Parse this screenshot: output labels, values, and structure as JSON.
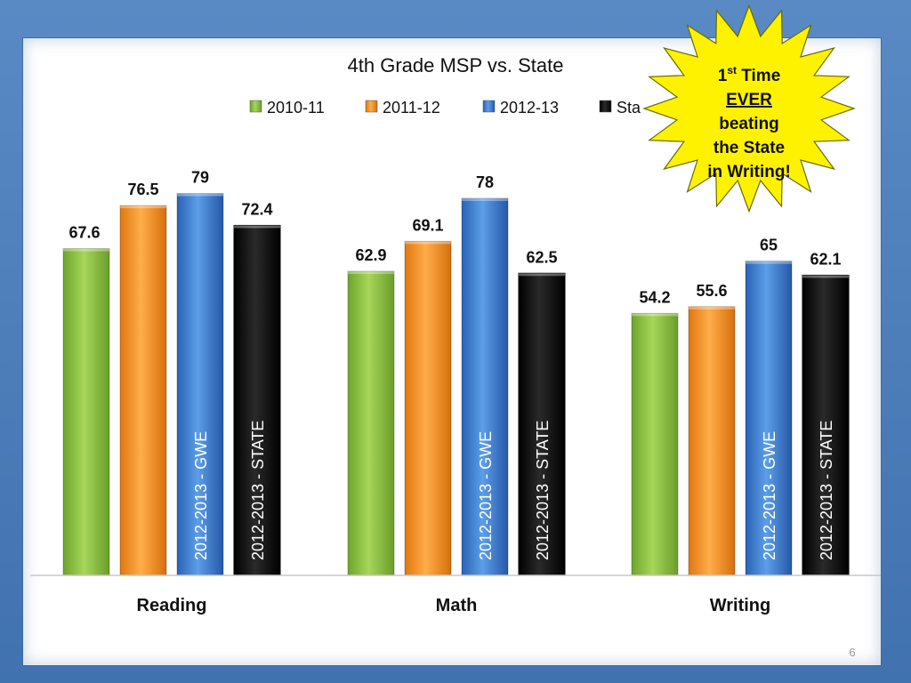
{
  "chart_data": {
    "type": "bar",
    "title": "4th Grade MSP vs. State",
    "categories": [
      "Reading",
      "Math",
      "Writing"
    ],
    "series": [
      {
        "name": "2010-11",
        "values": [
          67.6,
          62.9,
          54.2
        ],
        "color": "#8cc63f"
      },
      {
        "name": "2011-12",
        "values": [
          76.5,
          69.1,
          55.6
        ],
        "color": "#f7901e"
      },
      {
        "name": "2012-13",
        "values": [
          79,
          78,
          65
        ],
        "color": "#3b82d6",
        "bar_text": "2012-2013 - GWE"
      },
      {
        "name": "State",
        "values": [
          72.4,
          62.5,
          62.1
        ],
        "color": "#111111",
        "bar_text": "2012-2013 - STATE"
      }
    ],
    "legend_visible_names": [
      "2010-11",
      "2011-12",
      "2012-13",
      "Sta"
    ],
    "legend_position": "top",
    "ylim": [
      0,
      90
    ],
    "grid": false,
    "xlabel": "",
    "ylabel": ""
  },
  "callout": {
    "line1_base": "1",
    "line1_sup": "st",
    "line1_rest": " Time",
    "line2": "EVER",
    "line3": "beating",
    "line4": "the State",
    "line5": "in Writing!",
    "fill": "#fff200"
  },
  "page_number": "6"
}
